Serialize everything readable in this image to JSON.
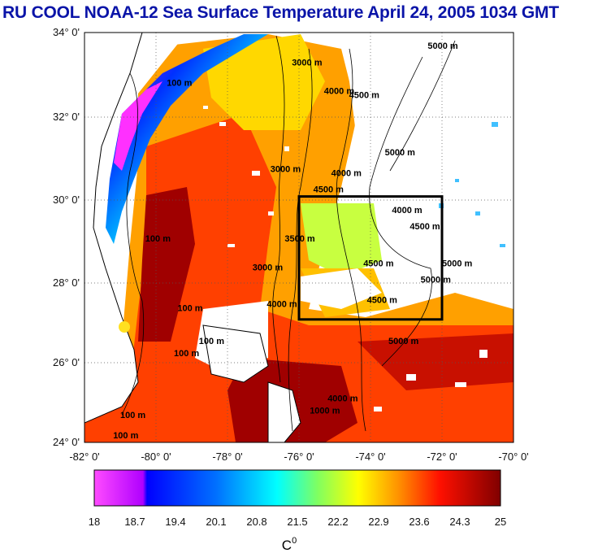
{
  "title": "RU COOL  NOAA-12 Sea Surface Temperature April 24, 2005 1034 GMT",
  "map": {
    "lat_ticks": [
      "34° 0'",
      "32° 0'",
      "30° 0'",
      "28° 0'",
      "26° 0'",
      "24° 0'"
    ],
    "lon_ticks": [
      "-82° 0'",
      "-80° 0'",
      "-78° 0'",
      "-76° 0'",
      "-74° 0'",
      "-72° 0'",
      "-70° 0'"
    ],
    "lat_range": [
      24,
      34
    ],
    "lon_range": [
      -82,
      -70
    ],
    "study_box": {
      "lon": [
        -76,
        -72
      ],
      "lat": [
        27,
        30
      ]
    },
    "contour_labels": [
      {
        "text": "100 m",
        "lon": -79.7,
        "lat": 32.7
      },
      {
        "text": "100 m",
        "lon": -80.3,
        "lat": 28.9
      },
      {
        "text": "100 m",
        "lon": -79.4,
        "lat": 27.2
      },
      {
        "text": "100 m",
        "lon": -79.5,
        "lat": 26.1
      },
      {
        "text": "100 m",
        "lon": -81.0,
        "lat": 24.6
      },
      {
        "text": "100 m",
        "lon": -81.2,
        "lat": 24.1
      },
      {
        "text": "100 m",
        "lon": -78.8,
        "lat": 26.4
      },
      {
        "text": "3000 m",
        "lon": -76.2,
        "lat": 33.2
      },
      {
        "text": "4000 m",
        "lon": -75.3,
        "lat": 32.5
      },
      {
        "text": "4500 m",
        "lon": -74.6,
        "lat": 32.4
      },
      {
        "text": "5000 m",
        "lon": -72.4,
        "lat": 33.6
      },
      {
        "text": "5000 m",
        "lon": -73.6,
        "lat": 31.0
      },
      {
        "text": "3000 m",
        "lon": -76.8,
        "lat": 30.6
      },
      {
        "text": "4000 m",
        "lon": -75.1,
        "lat": 30.5
      },
      {
        "text": "4500 m",
        "lon": -75.6,
        "lat": 30.1
      },
      {
        "text": "4000 m",
        "lon": -73.4,
        "lat": 29.6
      },
      {
        "text": "4500 m",
        "lon": -72.9,
        "lat": 29.2
      },
      {
        "text": "5000 m",
        "lon": -72.0,
        "lat": 28.3
      },
      {
        "text": "5000 m",
        "lon": -72.6,
        "lat": 27.9
      },
      {
        "text": "4500 m",
        "lon": -74.2,
        "lat": 28.3
      },
      {
        "text": "4500 m",
        "lon": -74.1,
        "lat": 27.4
      },
      {
        "text": "5000 m",
        "lon": -73.5,
        "lat": 26.4
      },
      {
        "text": "3000 m",
        "lon": -77.3,
        "lat": 28.2
      },
      {
        "text": "3500 m",
        "lon": -76.4,
        "lat": 28.9
      },
      {
        "text": "4000 m",
        "lon": -76.9,
        "lat": 27.3
      },
      {
        "text": "4000 m",
        "lon": -75.2,
        "lat": 25.0
      },
      {
        "text": "1000 m",
        "lon": -75.7,
        "lat": 24.7
      }
    ]
  },
  "colorbar": {
    "ticks": [
      "18",
      "18.7",
      "19.4",
      "20.1",
      "20.8",
      "21.5",
      "22.2",
      "22.9",
      "23.6",
      "24.3",
      "25"
    ],
    "min": 18,
    "max": 25,
    "unit": "C",
    "unit_sup": "0",
    "colors": [
      "#ff00ff",
      "#0000ff",
      "#00ffff",
      "#ffff00",
      "#ff8000",
      "#ff0000",
      "#800000"
    ]
  }
}
